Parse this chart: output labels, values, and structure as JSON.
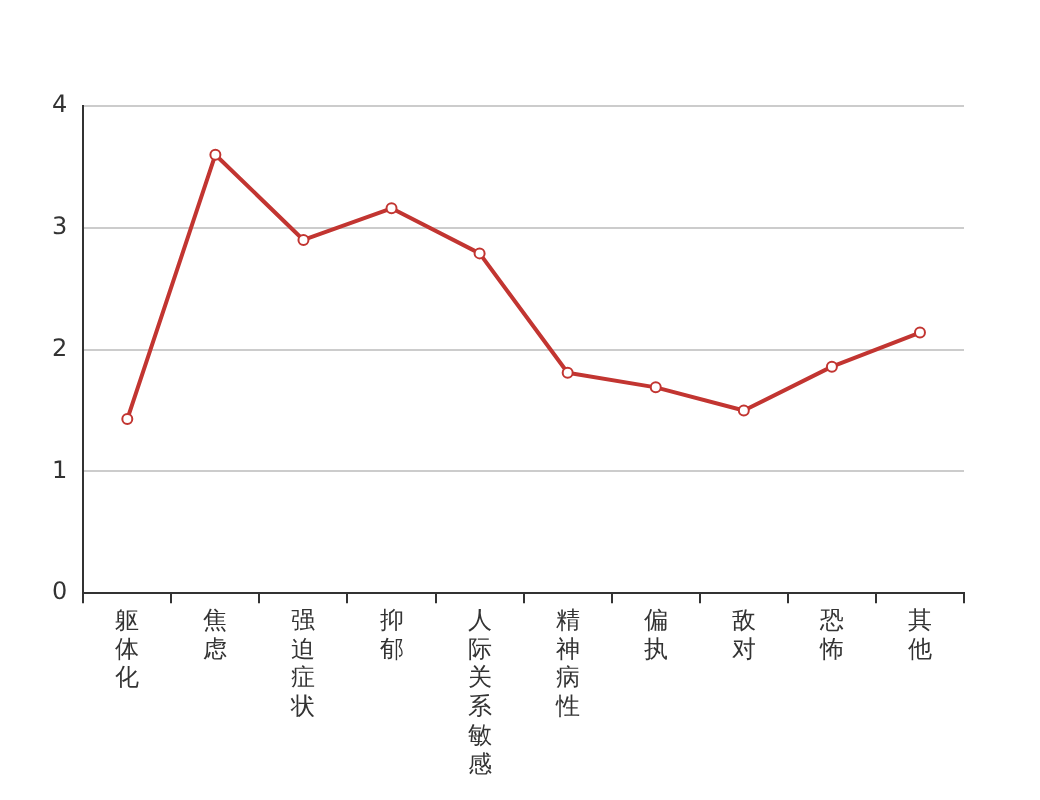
{
  "chart_data": {
    "type": "line",
    "categories": [
      "躯体化",
      "焦虑",
      "强迫症状",
      "抑郁",
      "人际关系敏感",
      "精神病性",
      "偏执",
      "敌对",
      "恐怖",
      "其他"
    ],
    "series": [
      {
        "color": "#c23531",
        "values": [
          1.43,
          3.6,
          2.9,
          3.16,
          2.79,
          1.81,
          1.69,
          1.5,
          1.86,
          2.14
        ]
      }
    ],
    "ylim": [
      0,
      4
    ],
    "yticks": [
      0,
      1,
      2,
      3,
      4
    ],
    "grid": "y",
    "marker": "circle",
    "line_style": "solid"
  }
}
